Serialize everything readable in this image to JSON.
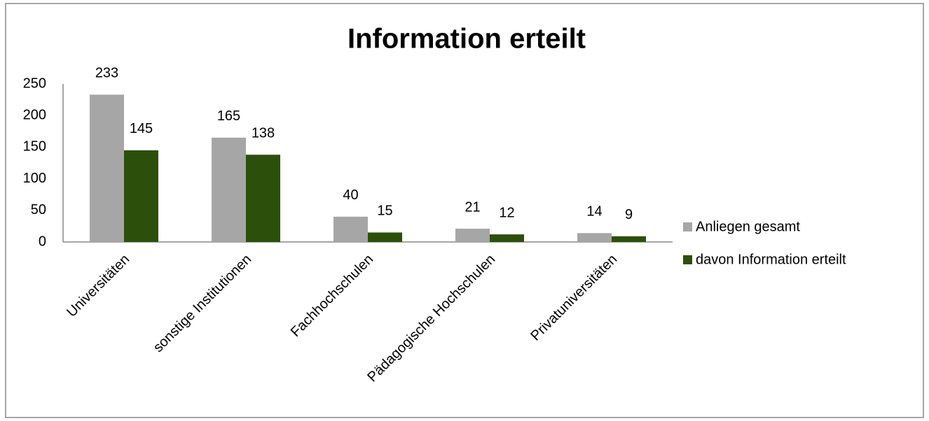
{
  "chart_data": {
    "type": "bar",
    "title": "Information erteilt",
    "categories": [
      "Universitäten",
      "sonstige Institutionen",
      "Fachhochschulen",
      "Pädagogische Hochschulen",
      "Privatuniversitäten"
    ],
    "series": [
      {
        "name": "Anliegen gesamt",
        "color": "#a6a6a6",
        "values": [
          233,
          165,
          40,
          21,
          14
        ]
      },
      {
        "name": "davon Information erteilt",
        "color": "#2d4f0c",
        "values": [
          145,
          138,
          15,
          12,
          9
        ]
      }
    ],
    "ylim": [
      0,
      250
    ],
    "yticks": [
      0,
      50,
      100,
      150,
      200,
      250
    ],
    "grid": false,
    "legend": "right"
  }
}
